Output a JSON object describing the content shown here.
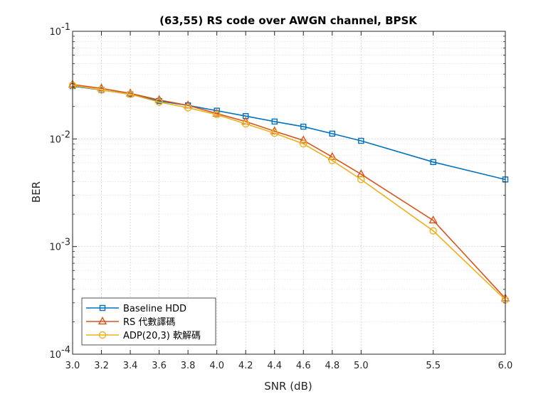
{
  "chart_data": {
    "type": "line",
    "title": "(63,55) RS code over AWGN channel, BPSK",
    "xlabel": "SNR (dB)",
    "ylabel": "BER",
    "xlim": [
      3.0,
      6.0
    ],
    "ylim": [
      0.0001,
      0.1
    ],
    "y_scale": "log",
    "grid": true,
    "minor_grid": true,
    "legend_position": "bottom-left",
    "x_ticks": [
      "3.0",
      "3.2",
      "3.4",
      "3.6",
      "3.8",
      "4.0",
      "4.2",
      "4.4",
      "4.6",
      "4.8",
      "5.0",
      "5.5",
      "6.0"
    ],
    "x_tick_values": [
      3.0,
      3.2,
      3.4,
      3.6,
      3.8,
      4.0,
      4.2,
      4.4,
      4.6,
      4.8,
      5.0,
      5.5,
      6.0
    ],
    "y_ticks": [
      {
        "value": 0.1,
        "base": "10",
        "exp": "-1"
      },
      {
        "value": 0.01,
        "base": "10",
        "exp": "-2"
      },
      {
        "value": 0.001,
        "base": "10",
        "exp": "-3"
      },
      {
        "value": 0.0001,
        "base": "10",
        "exp": "-4"
      }
    ],
    "x": [
      3.0,
      3.2,
      3.4,
      3.6,
      3.8,
      4.0,
      4.2,
      4.4,
      4.6,
      4.8,
      5.0,
      5.5,
      6.0
    ],
    "series": [
      {
        "name": "Baseline HDD",
        "color": "#0072BD",
        "marker": "square",
        "values": [
          0.031,
          0.0285,
          0.026,
          0.0225,
          0.0205,
          0.0183,
          0.0163,
          0.0145,
          0.013,
          0.0112,
          0.0096,
          0.0061,
          0.0042
        ]
      },
      {
        "name": "RS 代數譯碼",
        "color": "#D95319",
        "marker": "triangle",
        "values": [
          0.032,
          0.0295,
          0.0265,
          0.023,
          0.0205,
          0.0172,
          0.0145,
          0.0118,
          0.0097,
          0.0068,
          0.0047,
          0.00175,
          0.00033
        ]
      },
      {
        "name": "ADP(20,3) 軟解碼",
        "color": "#EDB120",
        "marker": "circle",
        "values": [
          0.0315,
          0.0285,
          0.026,
          0.022,
          0.0195,
          0.0168,
          0.0138,
          0.0113,
          0.009,
          0.0063,
          0.0042,
          0.0014,
          0.00032
        ]
      }
    ]
  }
}
